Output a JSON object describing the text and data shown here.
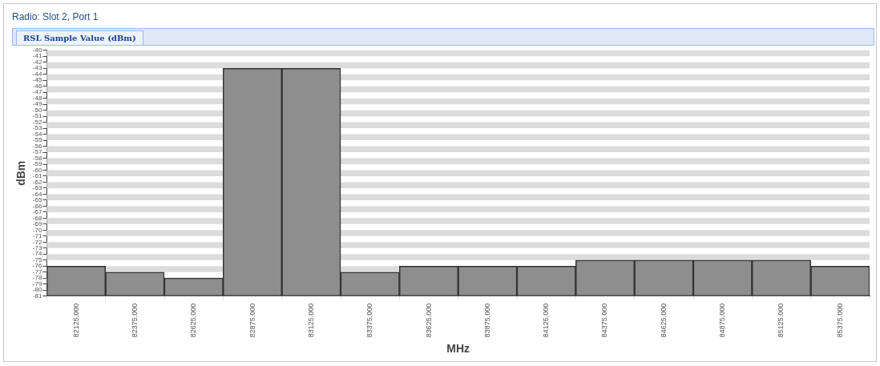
{
  "chart_data": {
    "type": "bar",
    "title": "Radio: Slot 2, Port 1",
    "subtitle": "RSL Sample Value (dBm)",
    "xlabel": "MHz",
    "ylabel": "dBm",
    "categories": [
      "82125.000",
      "82375.000",
      "82625.000",
      "82875.000",
      "83125.000",
      "83375.000",
      "83625.000",
      "83875.000",
      "84125.000",
      "84375.000",
      "84625.000",
      "84875.000",
      "85125.000",
      "85375.000"
    ],
    "values": [
      5,
      4,
      3,
      38,
      38,
      4,
      5,
      5,
      5,
      6,
      6,
      6,
      6,
      5
    ],
    "base": [
      -81,
      -81,
      -81,
      -81,
      -81,
      -81,
      -81,
      -81,
      -81,
      -81,
      -81,
      -81,
      -81,
      -81
    ],
    "color": "#8e8e8e",
    "ylim": [
      -81,
      -40
    ],
    "yticks": [
      -40,
      -41,
      -42,
      -43,
      -44,
      -45,
      -46,
      -47,
      -48,
      -49,
      -50,
      -51,
      -52,
      -53,
      -54,
      -55,
      -56,
      -57,
      -58,
      -59,
      -60,
      -61,
      -62,
      -63,
      -64,
      -65,
      -66,
      -67,
      -68,
      -69,
      -70,
      -71,
      -72,
      -73,
      -74,
      -75,
      -76,
      -77,
      -78,
      -79,
      -80,
      -81
    ],
    "bands": [
      {
        "axis": "y",
        "from": -41,
        "to": -40,
        "color": "#dcdcdc"
      },
      {
        "axis": "y",
        "from": -43,
        "to": -42,
        "color": "#dcdcdc"
      },
      {
        "axis": "y",
        "from": -45,
        "to": -44,
        "color": "#dcdcdc"
      },
      {
        "axis": "y",
        "from": -47,
        "to": -46,
        "color": "#dcdcdc"
      },
      {
        "axis": "y",
        "from": -49,
        "to": -48,
        "color": "#dcdcdc"
      },
      {
        "axis": "y",
        "from": -51,
        "to": -50,
        "color": "#dcdcdc"
      },
      {
        "axis": "y",
        "from": -53,
        "to": -52,
        "color": "#dcdcdc"
      },
      {
        "axis": "y",
        "from": -55,
        "to": -54,
        "color": "#dcdcdc"
      },
      {
        "axis": "y",
        "from": -57,
        "to": -56,
        "color": "#dcdcdc"
      },
      {
        "axis": "y",
        "from": -59,
        "to": -58,
        "color": "#dcdcdc"
      },
      {
        "axis": "y",
        "from": -61,
        "to": -60,
        "color": "#dcdcdc"
      },
      {
        "axis": "y",
        "from": -63,
        "to": -62,
        "color": "#dcdcdc"
      },
      {
        "axis": "y",
        "from": -65,
        "to": -64,
        "color": "#dcdcdc"
      },
      {
        "axis": "y",
        "from": -67,
        "to": -66,
        "color": "#dcdcdc"
      },
      {
        "axis": "y",
        "from": -69,
        "to": -68,
        "color": "#dcdcdc"
      },
      {
        "axis": "y",
        "from": -71,
        "to": -70,
        "color": "#dcdcdc"
      },
      {
        "axis": "y",
        "from": -73,
        "to": -72,
        "color": "#dcdcdc"
      },
      {
        "axis": "y",
        "from": -75,
        "to": -74,
        "color": "#dcdcdc"
      },
      {
        "axis": "y",
        "from": -77,
        "to": -76,
        "color": "#dcdcdc"
      },
      {
        "axis": "y",
        "from": -79,
        "to": -78,
        "color": "#dcdcdc"
      },
      {
        "axis": "y",
        "from": -81,
        "to": -80,
        "color": "#dcdcdc"
      }
    ],
    "legend": false
  }
}
